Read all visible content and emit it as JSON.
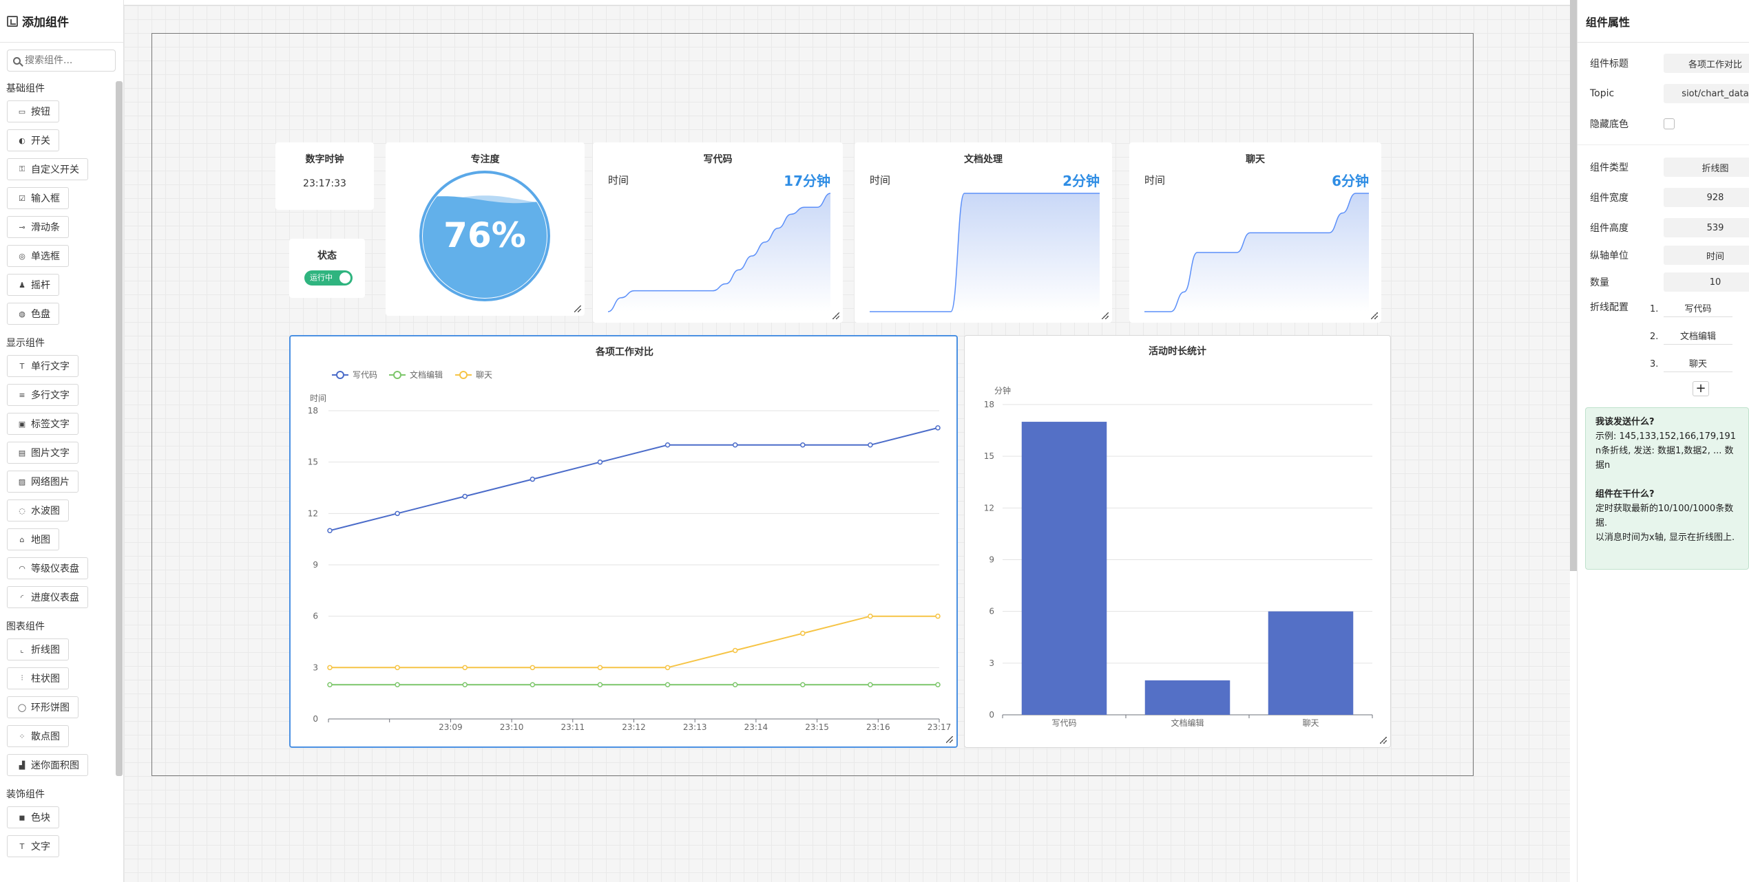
{
  "sidebar": {
    "title": "添加组件",
    "search_placeholder": "搜索组件...",
    "sections": [
      {
        "label": "基础组件",
        "items": [
          {
            "icon": "button-icon",
            "glyph": "▭",
            "label": "按钮"
          },
          {
            "icon": "switch-icon",
            "glyph": "◐",
            "label": "开关"
          },
          {
            "icon": "custom-switch-icon",
            "glyph": "⚿",
            "label": "自定义开关"
          },
          {
            "icon": "input-icon",
            "glyph": "☑",
            "label": "输入框"
          },
          {
            "icon": "slider-icon",
            "glyph": "⊸",
            "label": "滑动条"
          },
          {
            "icon": "radio-icon",
            "glyph": "◎",
            "label": "单选框"
          },
          {
            "icon": "joystick-icon",
            "glyph": "♟",
            "label": "摇杆"
          },
          {
            "icon": "palette-icon",
            "glyph": "◍",
            "label": "色盘"
          }
        ]
      },
      {
        "label": "显示组件",
        "items": [
          {
            "icon": "single-text-icon",
            "glyph": "T",
            "label": "单行文字"
          },
          {
            "icon": "multi-text-icon",
            "glyph": "≡",
            "label": "多行文字"
          },
          {
            "icon": "label-text-icon",
            "glyph": "▣",
            "label": "标签文字"
          },
          {
            "icon": "image-text-icon",
            "glyph": "▤",
            "label": "图片文字"
          },
          {
            "icon": "web-image-icon",
            "glyph": "▨",
            "label": "网络图片"
          },
          {
            "icon": "water-wave-icon",
            "glyph": "◌",
            "label": "水波图"
          },
          {
            "icon": "map-icon",
            "glyph": "⌂",
            "label": "地图"
          },
          {
            "icon": "level-gauge-icon",
            "glyph": "◠",
            "label": "等级仪表盘"
          },
          {
            "icon": "progress-gauge-icon",
            "glyph": "◜",
            "label": "进度仪表盘"
          }
        ]
      },
      {
        "label": "图表组件",
        "items": [
          {
            "icon": "line-chart-icon",
            "glyph": "⌞",
            "label": "折线图"
          },
          {
            "icon": "bar-chart-icon",
            "glyph": "⫶",
            "label": "柱状图"
          },
          {
            "icon": "ring-pie-icon",
            "glyph": "◯",
            "label": "环形饼图"
          },
          {
            "icon": "scatter-icon",
            "glyph": "⁘",
            "label": "散点图"
          },
          {
            "icon": "mini-area-icon",
            "glyph": "▟",
            "label": "迷你面积图"
          }
        ]
      },
      {
        "label": "装饰组件",
        "items": [
          {
            "icon": "color-block-icon",
            "glyph": "◼",
            "label": "色块"
          },
          {
            "icon": "text-icon",
            "glyph": "T",
            "label": "文字"
          }
        ]
      }
    ]
  },
  "widgets": {
    "clock": {
      "title": "数字时钟",
      "value": "23:17:33"
    },
    "status": {
      "title": "状态",
      "toggle_label": "运行中",
      "on": true
    },
    "focus": {
      "title": "专注度",
      "value_text": "76%",
      "level": 0.76
    },
    "code": {
      "title": "写代码",
      "label": "时间",
      "value": "17分钟"
    },
    "docs": {
      "title": "文档处理",
      "label": "时间",
      "value": "2分钟"
    },
    "chat": {
      "title": "聊天",
      "label": "时间",
      "value": "6分钟"
    }
  },
  "chart_data": [
    {
      "type": "area",
      "title": "写代码",
      "x": [
        1,
        2,
        3,
        4,
        5,
        6,
        7,
        8,
        9,
        10,
        11,
        12,
        13,
        14,
        15,
        16,
        17,
        18
      ],
      "values": [
        0,
        2,
        3,
        3,
        3,
        3,
        3,
        3,
        3,
        4,
        6,
        8,
        10,
        12,
        14,
        15,
        15,
        17
      ],
      "color": "#5b8ff9"
    },
    {
      "type": "area",
      "title": "文档处理",
      "x": [
        1,
        2,
        3,
        4,
        5,
        6,
        7,
        8,
        9,
        10,
        11,
        12,
        13,
        14,
        15,
        16,
        17,
        18
      ],
      "values": [
        0,
        0,
        0,
        0,
        0,
        0,
        0,
        2,
        2,
        2,
        2,
        2,
        2,
        2,
        2,
        2,
        2,
        2
      ],
      "color": "#5b8ff9"
    },
    {
      "type": "area",
      "title": "聊天",
      "x": [
        1,
        2,
        3,
        4,
        5,
        6,
        7,
        8,
        9,
        10,
        11,
        12,
        13,
        14,
        15,
        16,
        17,
        18
      ],
      "values": [
        0,
        0,
        0,
        1,
        3,
        3,
        3,
        3,
        4,
        4,
        4,
        4,
        4,
        4,
        4,
        5,
        6,
        6
      ],
      "color": "#5b8ff9"
    },
    {
      "type": "line",
      "title": "各项工作对比",
      "ylabel": "时间",
      "categories": [
        "",
        "23:09",
        "23:10",
        "23:11",
        "23:12",
        "23:13",
        "23:14",
        "23:15",
        "23:16",
        "23:17"
      ],
      "ylim": [
        0,
        18
      ],
      "yticks": [
        0,
        3,
        6,
        9,
        12,
        15,
        18
      ],
      "legend": "top-left",
      "grid": true,
      "series": [
        {
          "name": "写代码",
          "color": "#4a6bc9",
          "values": [
            11,
            12,
            13,
            14,
            15,
            16,
            16,
            16,
            16,
            17
          ]
        },
        {
          "name": "文档编辑",
          "color": "#7cc66a",
          "values": [
            2,
            2,
            2,
            2,
            2,
            2,
            2,
            2,
            2,
            2
          ]
        },
        {
          "name": "聊天",
          "color": "#f6c445",
          "values": [
            3,
            3,
            3,
            3,
            3,
            3,
            4,
            5,
            6,
            6
          ]
        }
      ]
    },
    {
      "type": "bar",
      "title": "活动时长统计",
      "ylabel": "分钟",
      "categories": [
        "写代码",
        "文档编辑",
        "聊天"
      ],
      "values": [
        17,
        2,
        6
      ],
      "ylim": [
        0,
        18
      ],
      "yticks": [
        0,
        3,
        6,
        9,
        12,
        15,
        18
      ],
      "color": "#5470c6",
      "grid": true
    }
  ],
  "props": {
    "title": "组件属性",
    "rows": {
      "title_label": "组件标题",
      "title_value": "各项工作对比",
      "topic_label": "Topic",
      "topic_value": "siot/chart_data",
      "hide_bg_label": "隐藏底色",
      "type_label": "组件类型",
      "type_value": "折线图",
      "width_label": "组件宽度",
      "width_value": "928",
      "height_label": "组件高度",
      "height_value": "539",
      "yunit_label": "纵轴单位",
      "yunit_value": "时间",
      "count_label": "数量",
      "count_value": "10",
      "lines_label": "折线配置"
    },
    "lines": [
      {
        "idx": "1.",
        "name": "写代码"
      },
      {
        "idx": "2.",
        "name": "文档编辑"
      },
      {
        "idx": "3.",
        "name": "聊天"
      }
    ],
    "add_label": "+",
    "help": {
      "q1": "我该发送什么?",
      "a1_1": "示例: 145,133,152,166,179,191",
      "a1_2": "n条折线, 发送: 数据1,数据2, ... 数据n",
      "q2": "组件在干什么?",
      "a2_1": "定时获取最新的10/100/1000条数据.",
      "a2_2": "以消息时间为x轴, 显示在折线图上."
    }
  }
}
